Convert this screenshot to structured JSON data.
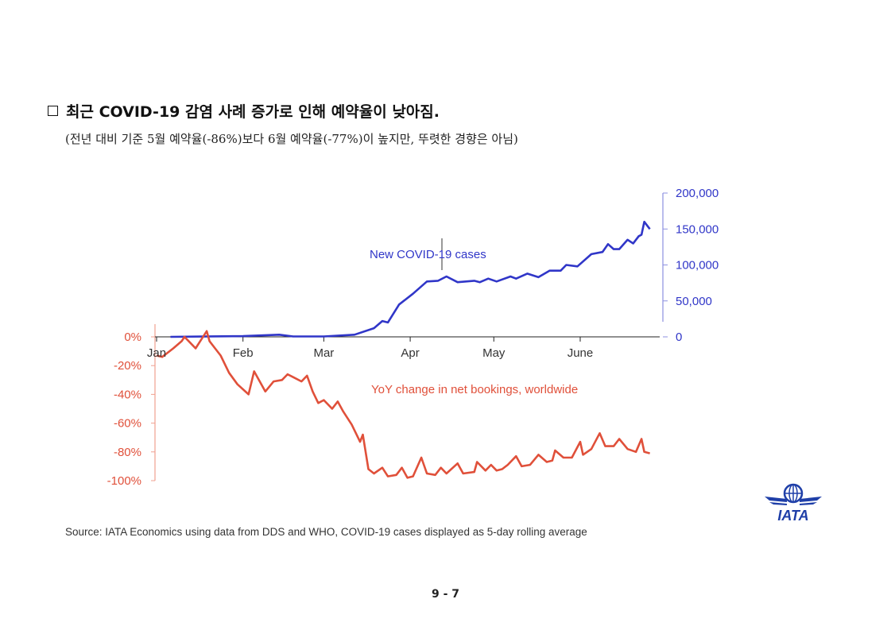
{
  "heading": "최근 COVID-19 감염 사례 증가로 인해 예약율이 낮아짐.",
  "subheading": "(전년 대비 기준 5월 예약율(-86%)보다 6월 예약율(-77%)이 높지만, 뚜렷한 경향은 아님)",
  "source": "Source: IATA Economics using data from DDS and WHO, COVID-19 cases displayed as 5-day rolling average",
  "page_number": "9 - 7",
  "logo": {
    "text": "IATA",
    "color": "#1f3fa8",
    "icon": "globe-wings-logo"
  },
  "chart_data": {
    "type": "line",
    "title": "",
    "x_ticks": [
      "Jan",
      "Feb",
      "Mar",
      "Apr",
      "May",
      "June"
    ],
    "x_tick_dates": [
      "2020-01-01",
      "2020-02-01",
      "2020-03-01",
      "2020-04-01",
      "2020-05-01",
      "2020-06-01"
    ],
    "xlim": [
      "2020-01-01",
      "2020-06-26"
    ],
    "y_left": {
      "ticks": [
        "0%",
        "-20%",
        "-40%",
        "-60%",
        "-80%",
        "-100%"
      ],
      "tick_values": [
        0,
        -20,
        -40,
        -60,
        -80,
        -100
      ],
      "ylim": [
        -100,
        8
      ],
      "color": "#e0503a"
    },
    "y_right": {
      "ticks": [
        "200,000",
        "150,000",
        "100,000",
        "50,000",
        "0"
      ],
      "tick_values": [
        200000,
        150000,
        100000,
        50000,
        0
      ],
      "ylim": [
        0,
        200000
      ],
      "color": "#3036c8"
    },
    "grid": false,
    "series": [
      {
        "name": "New COVID-19 cases",
        "axis": "right",
        "color": "#3036c8",
        "points": [
          [
            "2020-01-06",
            0
          ],
          [
            "2020-02-01",
            1000
          ],
          [
            "2020-02-14",
            3000
          ],
          [
            "2020-02-19",
            500
          ],
          [
            "2020-03-01",
            500
          ],
          [
            "2020-03-12",
            3000
          ],
          [
            "2020-03-19",
            12000
          ],
          [
            "2020-03-22",
            22000
          ],
          [
            "2020-03-24",
            20000
          ],
          [
            "2020-03-28",
            45000
          ],
          [
            "2020-04-02",
            60000
          ],
          [
            "2020-04-07",
            77000
          ],
          [
            "2020-04-11",
            78000
          ],
          [
            "2020-04-14",
            84000
          ],
          [
            "2020-04-18",
            76000
          ],
          [
            "2020-04-24",
            78000
          ],
          [
            "2020-04-26",
            76000
          ],
          [
            "2020-04-29",
            81000
          ],
          [
            "2020-05-02",
            77000
          ],
          [
            "2020-05-07",
            84000
          ],
          [
            "2020-05-09",
            81000
          ],
          [
            "2020-05-13",
            88000
          ],
          [
            "2020-05-17",
            83000
          ],
          [
            "2020-05-21",
            92000
          ],
          [
            "2020-05-25",
            92000
          ],
          [
            "2020-05-27",
            100000
          ],
          [
            "2020-05-31",
            98000
          ],
          [
            "2020-06-05",
            115000
          ],
          [
            "2020-06-09",
            118000
          ],
          [
            "2020-06-11",
            129000
          ],
          [
            "2020-06-13",
            122000
          ],
          [
            "2020-06-15",
            122000
          ],
          [
            "2020-06-18",
            135000
          ],
          [
            "2020-06-20",
            130000
          ],
          [
            "2020-06-22",
            140000
          ],
          [
            "2020-06-23",
            142000
          ],
          [
            "2020-06-24",
            160000
          ],
          [
            "2020-06-26",
            150000
          ]
        ]
      },
      {
        "name": "YoY change in net bookings, worldwide",
        "axis": "left",
        "color": "#e0503a",
        "points": [
          [
            "2020-01-01",
            -13
          ],
          [
            "2020-01-03",
            -14
          ],
          [
            "2020-01-07",
            -8
          ],
          [
            "2020-01-10",
            -3
          ],
          [
            "2020-01-11",
            0
          ],
          [
            "2020-01-13",
            -4
          ],
          [
            "2020-01-15",
            -8
          ],
          [
            "2020-01-17",
            -2
          ],
          [
            "2020-01-19",
            4
          ],
          [
            "2020-01-20",
            -3
          ],
          [
            "2020-01-22",
            -8
          ],
          [
            "2020-01-24",
            -13
          ],
          [
            "2020-01-27",
            -25
          ],
          [
            "2020-01-30",
            -33
          ],
          [
            "2020-02-03",
            -40
          ],
          [
            "2020-02-05",
            -24
          ],
          [
            "2020-02-09",
            -38
          ],
          [
            "2020-02-12",
            -31
          ],
          [
            "2020-02-15",
            -30
          ],
          [
            "2020-02-17",
            -26
          ],
          [
            "2020-02-19",
            -28
          ],
          [
            "2020-02-22",
            -31
          ],
          [
            "2020-02-24",
            -27
          ],
          [
            "2020-02-26",
            -38
          ],
          [
            "2020-02-28",
            -46
          ],
          [
            "2020-03-01",
            -44
          ],
          [
            "2020-03-04",
            -50
          ],
          [
            "2020-03-06",
            -45
          ],
          [
            "2020-03-08",
            -52
          ],
          [
            "2020-03-11",
            -61
          ],
          [
            "2020-03-14",
            -73
          ],
          [
            "2020-03-15",
            -68
          ],
          [
            "2020-03-17",
            -92
          ],
          [
            "2020-03-19",
            -95
          ],
          [
            "2020-03-22",
            -91
          ],
          [
            "2020-03-24",
            -97
          ],
          [
            "2020-03-27",
            -96
          ],
          [
            "2020-03-29",
            -91
          ],
          [
            "2020-03-31",
            -98
          ],
          [
            "2020-04-02",
            -97
          ],
          [
            "2020-04-05",
            -84
          ],
          [
            "2020-04-07",
            -95
          ],
          [
            "2020-04-10",
            -96
          ],
          [
            "2020-04-12",
            -91
          ],
          [
            "2020-04-14",
            -95
          ],
          [
            "2020-04-18",
            -88
          ],
          [
            "2020-04-20",
            -95
          ],
          [
            "2020-04-24",
            -94
          ],
          [
            "2020-04-25",
            -87
          ],
          [
            "2020-04-28",
            -93
          ],
          [
            "2020-04-30",
            -89
          ],
          [
            "2020-05-02",
            -93
          ],
          [
            "2020-05-04",
            -92
          ],
          [
            "2020-05-06",
            -89
          ],
          [
            "2020-05-09",
            -83
          ],
          [
            "2020-05-11",
            -90
          ],
          [
            "2020-05-14",
            -89
          ],
          [
            "2020-05-17",
            -82
          ],
          [
            "2020-05-20",
            -87
          ],
          [
            "2020-05-22",
            -86
          ],
          [
            "2020-05-23",
            -79
          ],
          [
            "2020-05-26",
            -84
          ],
          [
            "2020-05-29",
            -84
          ],
          [
            "2020-06-01",
            -73
          ],
          [
            "2020-06-02",
            -82
          ],
          [
            "2020-06-05",
            -78
          ],
          [
            "2020-06-08",
            -67
          ],
          [
            "2020-06-10",
            -76
          ],
          [
            "2020-06-13",
            -76
          ],
          [
            "2020-06-15",
            -71
          ],
          [
            "2020-06-18",
            -78
          ],
          [
            "2020-06-21",
            -80
          ],
          [
            "2020-06-23",
            -71
          ],
          [
            "2020-06-24",
            -80
          ],
          [
            "2020-06-26",
            -81
          ]
        ]
      }
    ]
  }
}
